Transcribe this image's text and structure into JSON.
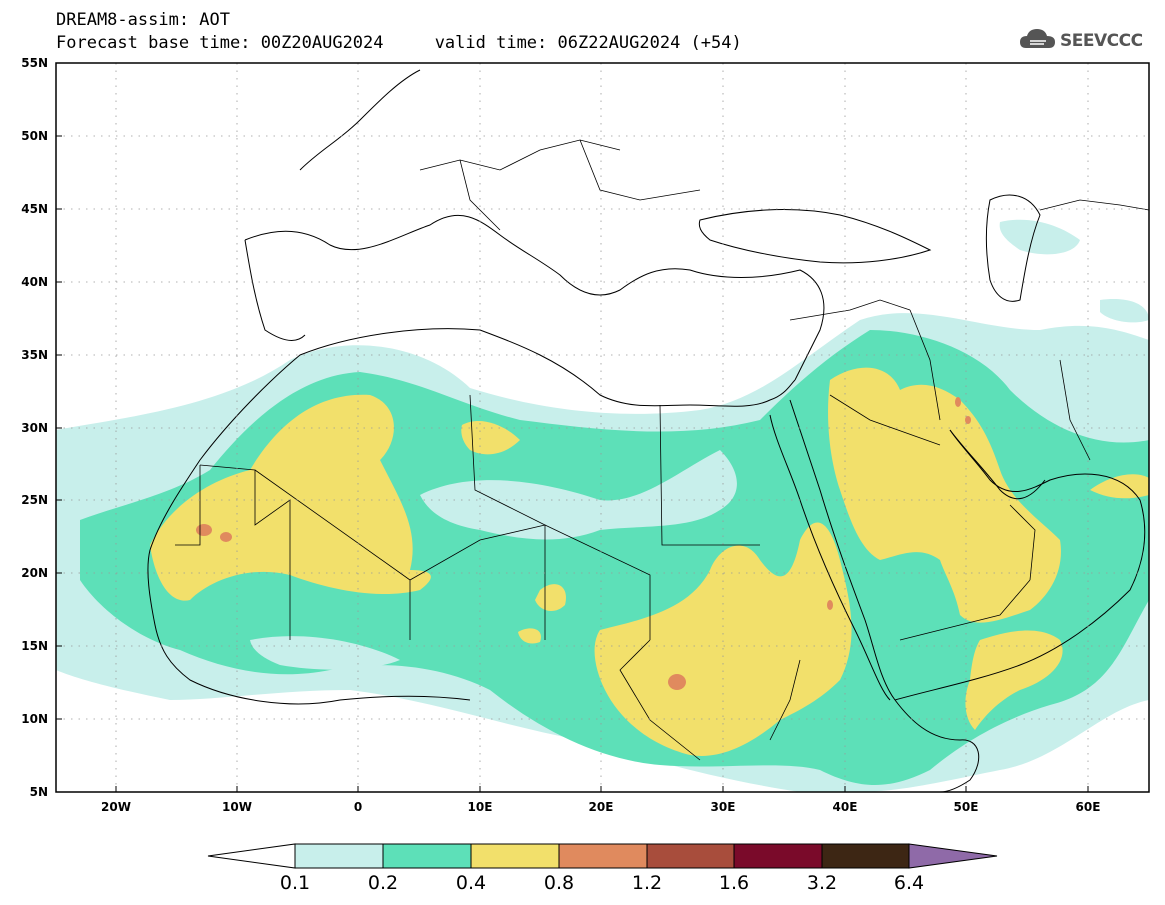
{
  "header": {
    "line1": "DREAM8-assim: AOT",
    "line2": "Forecast base time: 00Z20AUG2024     valid time: 06Z22AUG2024 (+54)"
  },
  "logo": {
    "text": "SEEVCCC",
    "icon": "cloud-icon"
  },
  "lat_labels": [
    "55N",
    "50N",
    "45N",
    "40N",
    "35N",
    "30N",
    "25N",
    "20N",
    "15N",
    "10N",
    "5N"
  ],
  "lon_labels": [
    "20W",
    "10W",
    "0",
    "10E",
    "20E",
    "30E",
    "40E",
    "50E",
    "60E"
  ],
  "colorbar": {
    "labels": [
      "0.1",
      "0.2",
      "0.4",
      "0.8",
      "1.2",
      "1.6",
      "3.2",
      "6.4"
    ],
    "colors": [
      "#c8efeb",
      "#5de0b8",
      "#f2e06b",
      "#e08a5e",
      "#a84d3c",
      "#7a0a2a",
      "#3d2614",
      "#8f6aa8"
    ]
  }
}
